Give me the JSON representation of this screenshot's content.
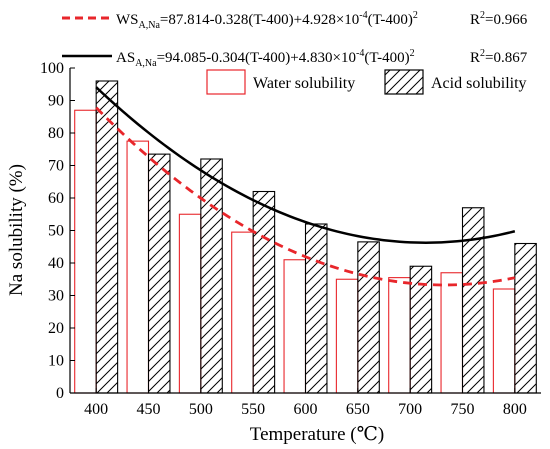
{
  "chart_data": {
    "type": "bar",
    "categories": [
      "400",
      "450",
      "500",
      "550",
      "600",
      "650",
      "700",
      "750",
      "800"
    ],
    "series": [
      {
        "name": "Water solubility",
        "values": [
          87,
          77.5,
          55,
          49.5,
          41,
          35,
          35.5,
          37,
          32
        ],
        "color": "#e8262b",
        "fill": "none",
        "pattern": "none"
      },
      {
        "name": "Acid solubility",
        "values": [
          96,
          73.5,
          72,
          62,
          52,
          46.5,
          39,
          57,
          46
        ],
        "color": "#000000",
        "fill": "none",
        "pattern": "diagonal-hatch"
      }
    ],
    "fits": [
      {
        "lhs": "WS",
        "lhs_sub": "A,Na",
        "rhs_a": "=87.814-0.328(T-400)+4.928×10",
        "rhs_exp": "-4",
        "rhs_b": "(T-400)",
        "rhs_exp2": "2",
        "r2_prefix": "R",
        "r2_exp": "2",
        "r2_value": "=0.966",
        "coefficients": [
          87.814,
          -0.328,
          0.0004928
        ],
        "color": "#e8262b",
        "style": "dashed"
      },
      {
        "lhs": "AS",
        "lhs_sub": "A,Na",
        "rhs_a": "=94.085-0.304(T-400)+4.830×10",
        "rhs_exp": "-4",
        "rhs_b": "(T-400)",
        "rhs_exp2": "2",
        "r2_prefix": "R",
        "r2_exp": "2",
        "r2_value": "=0.867",
        "coefficients": [
          94.085,
          -0.304,
          0.000483
        ],
        "color": "#000000",
        "style": "solid"
      }
    ],
    "xlabel": "Temperature (℃)",
    "ylabel": "Na solubility (%)",
    "ylim": [
      0,
      100
    ],
    "yticks": [
      "0",
      "10",
      "20",
      "30",
      "40",
      "50",
      "60",
      "70",
      "80",
      "90",
      "100"
    ],
    "x_range": [
      400,
      800
    ],
    "grid": false,
    "legend_position": "top-right"
  }
}
